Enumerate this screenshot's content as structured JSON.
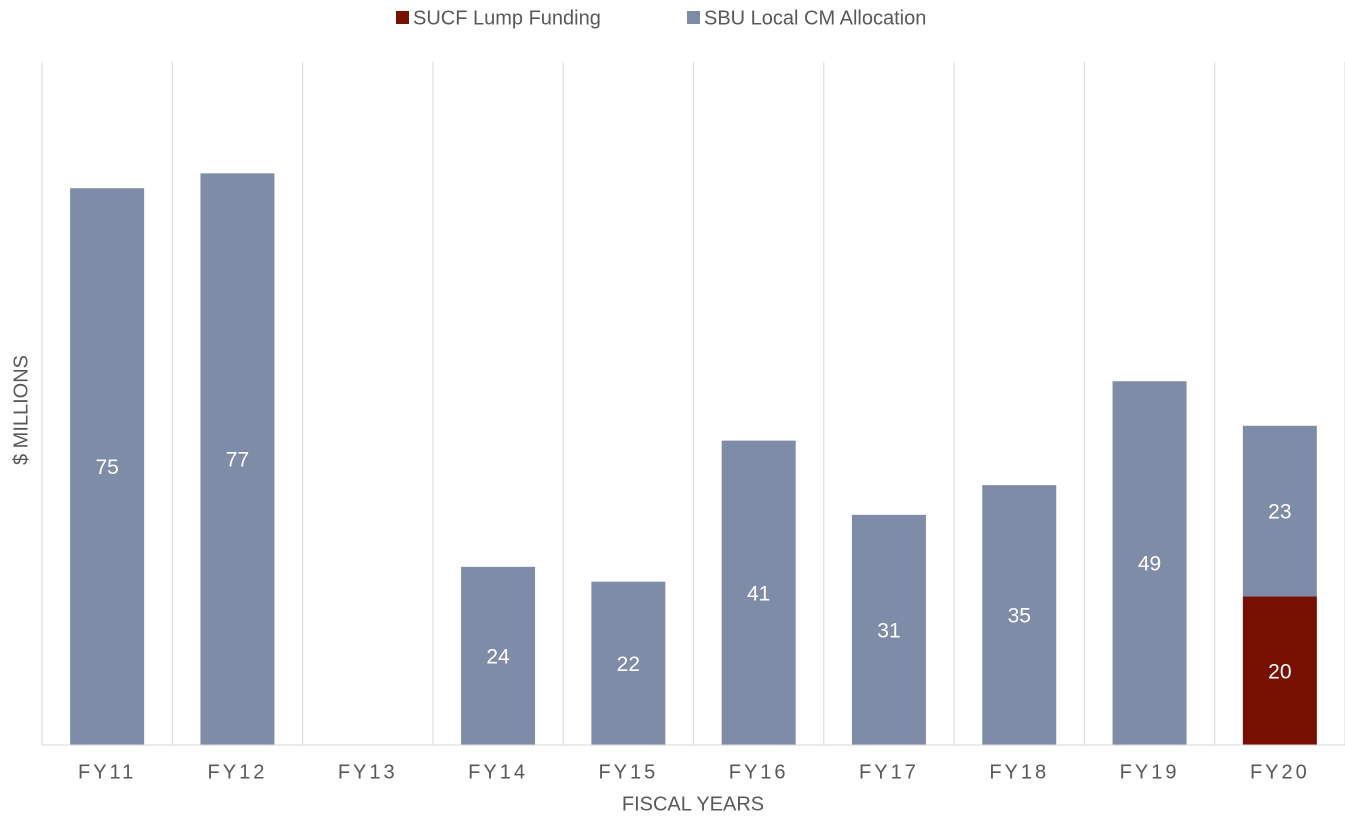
{
  "chart_data": {
    "type": "bar",
    "stacked": true,
    "x_label": "FISCAL YEARS",
    "y_label": "$ MILLIONS",
    "categories": [
      "FY11",
      "FY12",
      "FY13",
      "FY14",
      "FY15",
      "FY16",
      "FY17",
      "FY18",
      "FY19",
      "FY20"
    ],
    "series": [
      {
        "name": "SUCF Lump Funding",
        "color": "#761000",
        "values": [
          null,
          null,
          null,
          null,
          null,
          null,
          null,
          null,
          null,
          20
        ]
      },
      {
        "name": "SBU Local CM Allocation",
        "color": "#7f8ca7",
        "values": [
          75,
          77,
          null,
          24,
          22,
          41,
          31,
          35,
          49,
          23
        ]
      }
    ],
    "ylim": [
      0,
      92
    ],
    "legend": "top"
  }
}
